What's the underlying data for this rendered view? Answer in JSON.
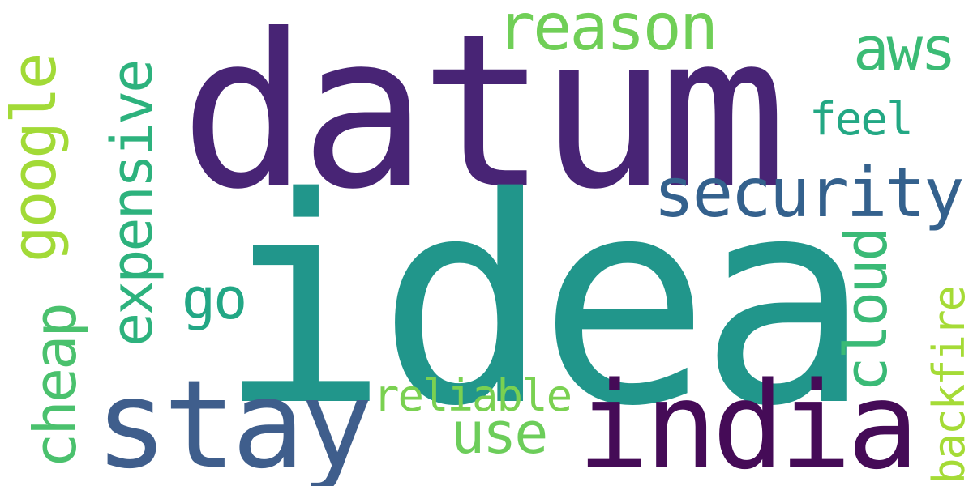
{
  "word_cloud": {
    "words": [
      {
        "text": "idea",
        "color": "#21968b"
      },
      {
        "text": "datum",
        "color": "#482475"
      },
      {
        "text": "stay",
        "color": "#3f5e8c"
      },
      {
        "text": "india",
        "color": "#450b57"
      },
      {
        "text": "security",
        "color": "#34618d"
      },
      {
        "text": "reason",
        "color": "#70cf57"
      },
      {
        "text": "google",
        "color": "#a2da37"
      },
      {
        "text": "expensive",
        "color": "#2db27d"
      },
      {
        "text": "cheap",
        "color": "#4ac16d"
      },
      {
        "text": "cloud",
        "color": "#3aba76"
      },
      {
        "text": "aws",
        "color": "#3bbb75"
      },
      {
        "text": "go",
        "color": "#22a785"
      },
      {
        "text": "use",
        "color": "#6ccd5a"
      },
      {
        "text": "feel",
        "color": "#23a884"
      },
      {
        "text": "reliable",
        "color": "#7ad151"
      },
      {
        "text": "backfire",
        "color": "#a5db36"
      }
    ]
  }
}
